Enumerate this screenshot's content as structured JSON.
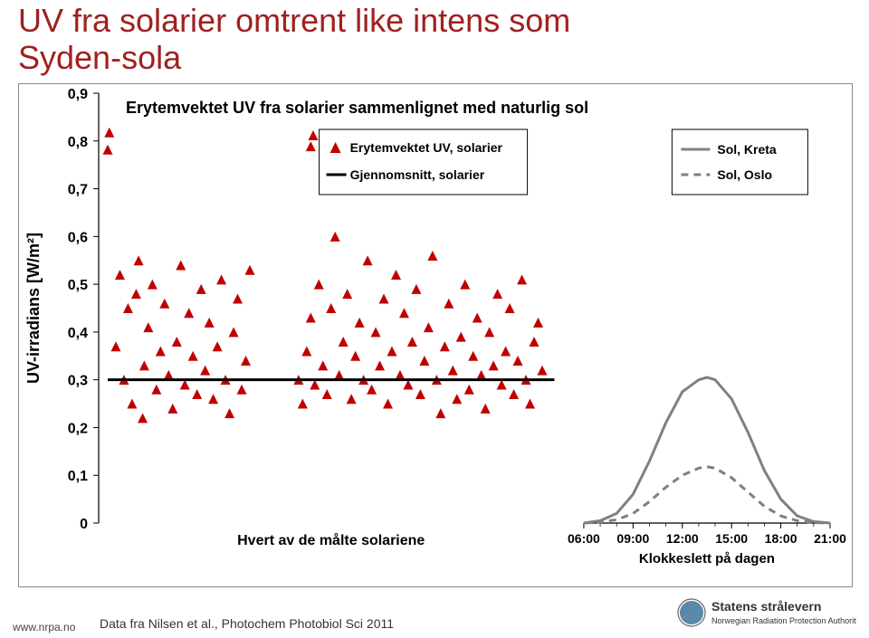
{
  "title_line1": "UV fra solarier omtrent like intens som",
  "title_line2": "Syden-sola",
  "title_color": "#a02020",
  "title_fontsize": 36,
  "url": "www.nrpa.no",
  "source": "Data fra Nilsen et al., Photochem Photobiol Sci 2011",
  "logo": {
    "org_name": "Statens strålevern",
    "subtitle": "Norwegian Radiation Protection Authority",
    "accent_color": "#5a88a8",
    "text_color": "#333333"
  },
  "chart": {
    "type": "scatter-with-lines",
    "background_color": "#ffffff",
    "plot_title": "Erytemvektet UV fra solarier sammenlignet med naturlig sol",
    "plot_title_fontsize": 18,
    "plot_title_weight": "bold",
    "ylabel": "UV-irradians [W/m²]",
    "ylabel_fontsize": 18,
    "x_category_label": "Hvert av de målte solariene",
    "x_time_label": "Klokkeslett på dagen",
    "ylim": [
      0,
      0.9
    ],
    "ytick_step": 0.1,
    "ytick_labels": [
      "0",
      "0,1",
      "0,2",
      "0,3",
      "0,4",
      "0,5",
      "0,6",
      "0,7",
      "0,8",
      "0,9"
    ],
    "tick_fontsize": 16,
    "grid_color": "#cccccc",
    "legend1": {
      "scatter_name": "Erytemvektet UV, solarier",
      "scatter_marker": "triangle",
      "scatter_color": "#c00000",
      "line_name": "Gjennomsnitt, solarier",
      "line_color": "#000000"
    },
    "legend2": {
      "kreta_name": "Sol, Kreta",
      "kreta_color": "#808080",
      "kreta_dash": "solid",
      "oslo_name": "Sol, Oslo",
      "oslo_color": "#808080",
      "oslo_dash": "8,6"
    },
    "solarier_mean": 0.3,
    "solarier_scatter_x0": 0.05,
    "solarier_scatter_x1": 0.6,
    "solarier_points": [
      [
        0.05,
        0.782
      ],
      [
        0.052,
        0.818
      ],
      [
        0.06,
        0.37
      ],
      [
        0.065,
        0.52
      ],
      [
        0.07,
        0.3
      ],
      [
        0.075,
        0.45
      ],
      [
        0.08,
        0.25
      ],
      [
        0.085,
        0.48
      ],
      [
        0.088,
        0.55
      ],
      [
        0.093,
        0.22
      ],
      [
        0.095,
        0.33
      ],
      [
        0.1,
        0.41
      ],
      [
        0.105,
        0.5
      ],
      [
        0.11,
        0.28
      ],
      [
        0.115,
        0.36
      ],
      [
        0.12,
        0.46
      ],
      [
        0.125,
        0.31
      ],
      [
        0.13,
        0.24
      ],
      [
        0.135,
        0.38
      ],
      [
        0.14,
        0.54
      ],
      [
        0.145,
        0.29
      ],
      [
        0.15,
        0.44
      ],
      [
        0.155,
        0.35
      ],
      [
        0.16,
        0.27
      ],
      [
        0.165,
        0.49
      ],
      [
        0.17,
        0.32
      ],
      [
        0.175,
        0.42
      ],
      [
        0.18,
        0.26
      ],
      [
        0.185,
        0.37
      ],
      [
        0.19,
        0.51
      ],
      [
        0.195,
        0.3
      ],
      [
        0.2,
        0.23
      ],
      [
        0.205,
        0.4
      ],
      [
        0.21,
        0.47
      ],
      [
        0.215,
        0.28
      ],
      [
        0.22,
        0.34
      ],
      [
        0.225,
        0.53
      ],
      [
        0.3,
        0.789
      ],
      [
        0.303,
        0.812
      ],
      [
        0.285,
        0.3
      ],
      [
        0.29,
        0.25
      ],
      [
        0.295,
        0.36
      ],
      [
        0.3,
        0.43
      ],
      [
        0.305,
        0.29
      ],
      [
        0.31,
        0.5
      ],
      [
        0.315,
        0.33
      ],
      [
        0.32,
        0.27
      ],
      [
        0.325,
        0.45
      ],
      [
        0.33,
        0.6
      ],
      [
        0.335,
        0.31
      ],
      [
        0.34,
        0.38
      ],
      [
        0.345,
        0.48
      ],
      [
        0.35,
        0.26
      ],
      [
        0.355,
        0.35
      ],
      [
        0.36,
        0.42
      ],
      [
        0.365,
        0.3
      ],
      [
        0.37,
        0.55
      ],
      [
        0.375,
        0.28
      ],
      [
        0.38,
        0.4
      ],
      [
        0.385,
        0.33
      ],
      [
        0.39,
        0.47
      ],
      [
        0.395,
        0.25
      ],
      [
        0.4,
        0.36
      ],
      [
        0.405,
        0.52
      ],
      [
        0.41,
        0.31
      ],
      [
        0.415,
        0.44
      ],
      [
        0.42,
        0.29
      ],
      [
        0.425,
        0.38
      ],
      [
        0.43,
        0.49
      ],
      [
        0.435,
        0.27
      ],
      [
        0.44,
        0.34
      ],
      [
        0.445,
        0.41
      ],
      [
        0.45,
        0.56
      ],
      [
        0.455,
        0.3
      ],
      [
        0.46,
        0.23
      ],
      [
        0.465,
        0.37
      ],
      [
        0.47,
        0.46
      ],
      [
        0.475,
        0.32
      ],
      [
        0.48,
        0.26
      ],
      [
        0.485,
        0.39
      ],
      [
        0.49,
        0.5
      ],
      [
        0.495,
        0.28
      ],
      [
        0.5,
        0.35
      ],
      [
        0.505,
        0.43
      ],
      [
        0.51,
        0.31
      ],
      [
        0.515,
        0.24
      ],
      [
        0.52,
        0.4
      ],
      [
        0.525,
        0.33
      ],
      [
        0.53,
        0.48
      ],
      [
        0.535,
        0.29
      ],
      [
        0.54,
        0.36
      ],
      [
        0.545,
        0.45
      ],
      [
        0.55,
        0.27
      ],
      [
        0.555,
        0.34
      ],
      [
        0.56,
        0.51
      ],
      [
        0.565,
        0.3
      ],
      [
        0.57,
        0.25
      ],
      [
        0.575,
        0.38
      ],
      [
        0.58,
        0.42
      ],
      [
        0.585,
        0.32
      ]
    ],
    "x_times": [
      "06:00",
      "09:00",
      "12:00",
      "15:00",
      "18:00",
      "21:00"
    ],
    "x_time_min": 6,
    "x_time_max": 21,
    "kreta_curve": [
      [
        6.0,
        0.0
      ],
      [
        7.0,
        0.005
      ],
      [
        8.0,
        0.02
      ],
      [
        9.0,
        0.06
      ],
      [
        10.0,
        0.13
      ],
      [
        11.0,
        0.21
      ],
      [
        12.0,
        0.275
      ],
      [
        13.0,
        0.3
      ],
      [
        13.5,
        0.305
      ],
      [
        14.0,
        0.3
      ],
      [
        15.0,
        0.26
      ],
      [
        16.0,
        0.19
      ],
      [
        17.0,
        0.11
      ],
      [
        18.0,
        0.05
      ],
      [
        19.0,
        0.015
      ],
      [
        20.0,
        0.003
      ],
      [
        21.0,
        0.0
      ]
    ],
    "oslo_curve": [
      [
        6.0,
        0.0
      ],
      [
        7.0,
        0.002
      ],
      [
        8.0,
        0.007
      ],
      [
        9.0,
        0.02
      ],
      [
        10.0,
        0.045
      ],
      [
        11.0,
        0.075
      ],
      [
        12.0,
        0.1
      ],
      [
        13.0,
        0.115
      ],
      [
        13.5,
        0.118
      ],
      [
        14.0,
        0.115
      ],
      [
        15.0,
        0.095
      ],
      [
        16.0,
        0.065
      ],
      [
        17.0,
        0.035
      ],
      [
        18.0,
        0.015
      ],
      [
        19.0,
        0.005
      ],
      [
        20.0,
        0.001
      ],
      [
        21.0,
        0.0
      ]
    ]
  }
}
